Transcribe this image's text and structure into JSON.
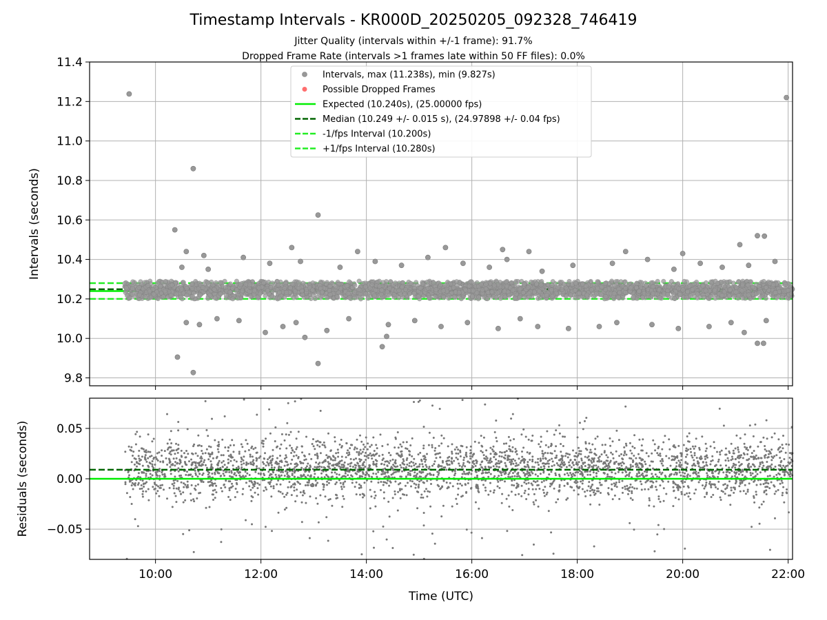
{
  "colors": {
    "interval_point": "#999999",
    "residual_point": "#777777",
    "dropped": "#ff5555",
    "expected": "#00ee00",
    "median": "#006400",
    "bound": "#22ee22",
    "grid": "#b0b0b0"
  },
  "chart_data": [
    {
      "type": "scatter",
      "title": "Timestamp Intervals - KR000D_20250205_092328_746419",
      "subtitle_lines": [
        "Jitter Quality (intervals within +/-1 frame): 91.7%",
        "Dropped Frame Rate (intervals >1 frames late within 50 FF files): 0.0%"
      ],
      "ylabel": "Intervals (seconds)",
      "xlim": [
        "08:45",
        "22:05"
      ],
      "ylim": [
        9.76,
        11.4
      ],
      "yticks": [
        "9.8",
        "10.0",
        "10.2",
        "10.4",
        "10.6",
        "10.8",
        "11.0",
        "11.2",
        "11.4"
      ],
      "xticks": [
        "10:00",
        "12:00",
        "14:00",
        "16:00",
        "18:00",
        "20:00",
        "22:00"
      ],
      "grid": true,
      "legend_position": "top-center",
      "series": [
        {
          "name": "Intervals, max (11.238s), min (9.827s)",
          "kind": "points",
          "points": [
            [
              "09:30",
              11.238
            ],
            [
              "21:58",
              11.22
            ],
            [
              "10:43",
              10.86
            ],
            [
              "13:05",
              10.625
            ],
            [
              "10:22",
              10.55
            ],
            [
              "10:25",
              9.905
            ],
            [
              "10:43",
              9.827
            ],
            [
              "13:05",
              9.873
            ],
            [
              "14:18",
              9.958
            ],
            [
              "14:23",
              10.01
            ],
            [
              "12:50",
              10.005
            ],
            [
              "21:25",
              10.52
            ],
            [
              "21:33",
              10.518
            ],
            [
              "21:25",
              9.975
            ],
            [
              "21:32",
              9.975
            ],
            [
              "12:35",
              10.46
            ],
            [
              "15:30",
              10.46
            ],
            [
              "16:35",
              10.45
            ],
            [
              "17:05",
              10.44
            ],
            [
              "18:55",
              10.44
            ],
            [
              "20:00",
              10.43
            ],
            [
              "21:05",
              10.475
            ],
            [
              "13:50",
              10.44
            ],
            [
              "11:40",
              10.41
            ],
            [
              "10:55",
              10.42
            ],
            [
              "10:35",
              10.44
            ],
            [
              "10:30",
              10.36
            ],
            [
              "11:00",
              10.35
            ],
            [
              "12:10",
              10.38
            ],
            [
              "12:45",
              10.39
            ],
            [
              "13:30",
              10.36
            ],
            [
              "14:10",
              10.39
            ],
            [
              "14:40",
              10.37
            ],
            [
              "15:10",
              10.41
            ],
            [
              "15:50",
              10.38
            ],
            [
              "16:20",
              10.36
            ],
            [
              "16:40",
              10.4
            ],
            [
              "17:20",
              10.34
            ],
            [
              "17:55",
              10.37
            ],
            [
              "18:40",
              10.38
            ],
            [
              "19:20",
              10.4
            ],
            [
              "19:50",
              10.35
            ],
            [
              "20:20",
              10.38
            ],
            [
              "20:45",
              10.36
            ],
            [
              "21:15",
              10.37
            ],
            [
              "21:45",
              10.39
            ],
            [
              "10:35",
              10.08
            ],
            [
              "10:50",
              10.07
            ],
            [
              "11:10",
              10.1
            ],
            [
              "11:35",
              10.09
            ],
            [
              "12:05",
              10.03
            ],
            [
              "12:25",
              10.06
            ],
            [
              "12:40",
              10.08
            ],
            [
              "13:15",
              10.04
            ],
            [
              "13:40",
              10.1
            ],
            [
              "14:25",
              10.07
            ],
            [
              "14:55",
              10.09
            ],
            [
              "15:25",
              10.06
            ],
            [
              "15:55",
              10.08
            ],
            [
              "16:30",
              10.05
            ],
            [
              "16:55",
              10.1
            ],
            [
              "17:15",
              10.06
            ],
            [
              "17:50",
              10.05
            ],
            [
              "18:25",
              10.06
            ],
            [
              "18:45",
              10.08
            ],
            [
              "19:25",
              10.07
            ],
            [
              "19:55",
              10.05
            ],
            [
              "20:30",
              10.06
            ],
            [
              "20:55",
              10.08
            ],
            [
              "21:10",
              10.03
            ],
            [
              "21:35",
              10.09
            ]
          ]
        },
        {
          "name": "Possible Dropped Frames",
          "kind": "points",
          "points": []
        },
        {
          "name": "Expected (10.240s), (25.00000 fps)",
          "kind": "hline",
          "y": 10.24
        },
        {
          "name": "Median (10.249 +/- 0.015 s), (24.97898 +/- 0.04 fps)",
          "kind": "hline",
          "y": 10.249
        },
        {
          "name": "-1/fps Interval (10.200s)",
          "kind": "hline",
          "y": 10.2
        },
        {
          "name": "+1/fps Interval (10.280s)",
          "kind": "hline",
          "y": 10.28
        }
      ],
      "dense_band": {
        "x_range": [
          "09:25",
          "22:05"
        ],
        "y_range": [
          10.2,
          10.29
        ]
      }
    },
    {
      "type": "scatter",
      "ylabel": "Residuals (seconds)",
      "xlabel": "Time (UTC)",
      "xlim": [
        "08:45",
        "22:05"
      ],
      "ylim": [
        -0.08,
        0.08
      ],
      "yticks": [
        "−0.05",
        "0.00",
        "0.05"
      ],
      "ytick_values": [
        -0.05,
        0.0,
        0.05
      ],
      "xticks": [
        "10:00",
        "12:00",
        "14:00",
        "16:00",
        "18:00",
        "20:00",
        "22:00"
      ],
      "grid": true,
      "expected_residual": 0.0,
      "median_residual": 0.009,
      "residual_band": {
        "x_range": [
          "09:25",
          "22:05"
        ],
        "core_range": [
          -0.02,
          0.04
        ],
        "outlier_range": [
          -0.08,
          0.08
        ]
      }
    }
  ]
}
